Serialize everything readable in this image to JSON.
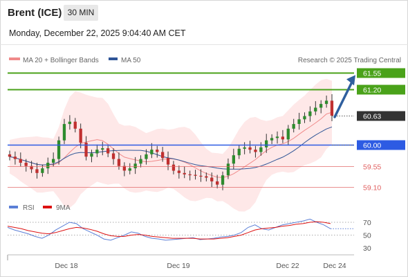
{
  "header": {
    "instrument": "Brent (ICE)",
    "timeframe": "30 MIN",
    "datetime": "Monday, December 22, 2025 9:04:40 AM CET"
  },
  "legend": {
    "ma20_bb": "MA 20 + Bollinger Bands",
    "ma50": "MA 50",
    "credit": "Research © 2025 Trading Central",
    "rsi": "RSI",
    "rsi_ma": "9MA"
  },
  "colors": {
    "ma20": "#f08a8a",
    "ma50": "#2f5597",
    "band": "#fde0e0",
    "target": "#4aa21a",
    "pivot": "#2d5be3",
    "support": "#e06060",
    "current": "#333333",
    "arrow": "#2f5f9e",
    "rsi": "#5b7fd6",
    "rsi_ma": "#dd1111",
    "candle_up": "#2e8b2e",
    "candle_down": "#c03030"
  },
  "chart_data": [
    {
      "type": "candlestick",
      "x_ticks": [
        "Dec 18",
        "Dec 19",
        "Dec 22",
        "Dec 24"
      ],
      "ylim": [
        58.9,
        61.7
      ],
      "levels": [
        {
          "label": "61.55",
          "value": 61.55,
          "kind": "target"
        },
        {
          "label": "61.20",
          "value": 61.2,
          "kind": "target"
        },
        {
          "label": "60.63",
          "value": 60.63,
          "kind": "current"
        },
        {
          "label": "60.00",
          "value": 60.0,
          "kind": "pivot"
        },
        {
          "label": "59.55",
          "value": 59.55,
          "kind": "support"
        },
        {
          "label": "59.10",
          "value": 59.1,
          "kind": "support"
        }
      ],
      "arrow": {
        "from_value": 60.6,
        "to_value": 61.5
      },
      "close_series": [
        59.75,
        59.7,
        59.62,
        59.55,
        59.48,
        59.4,
        59.5,
        59.62,
        59.7,
        60.1,
        60.45,
        60.5,
        60.35,
        60.05,
        59.75,
        59.82,
        59.9,
        59.93,
        59.82,
        59.7,
        59.55,
        59.45,
        59.5,
        59.6,
        59.7,
        59.8,
        59.9,
        59.85,
        59.72,
        59.58,
        59.45,
        59.4,
        59.37,
        59.36,
        59.34,
        59.33,
        59.3,
        59.22,
        59.15,
        59.35,
        59.6,
        59.78,
        59.92,
        59.95,
        59.9,
        59.85,
        59.95,
        60.1,
        60.15,
        60.18,
        60.12,
        60.35,
        60.45,
        60.55,
        60.62,
        60.72,
        60.8,
        60.88,
        60.95,
        60.63
      ]
    },
    {
      "type": "line",
      "title": "RSI",
      "y_ticks": [
        70,
        50,
        30
      ],
      "ylim": [
        20,
        80
      ],
      "series": [
        {
          "name": "RSI",
          "values": [
            62,
            58,
            55,
            52,
            48,
            45,
            50,
            58,
            64,
            70,
            68,
            60,
            55,
            50,
            44,
            42,
            46,
            50,
            55,
            53,
            48,
            45,
            44,
            42,
            43,
            44,
            45,
            46,
            43,
            44,
            45,
            47,
            48,
            50,
            54,
            62,
            66,
            60,
            58,
            62,
            66,
            68,
            70,
            72,
            75,
            70,
            66,
            60
          ]
        },
        {
          "name": "9MA",
          "values": [
            64,
            62,
            60,
            57,
            55,
            53,
            52,
            54,
            57,
            60,
            62,
            61,
            59,
            56,
            52,
            49,
            48,
            48,
            50,
            51,
            50,
            48,
            47,
            46,
            45,
            45,
            45,
            45,
            44,
            44,
            44,
            45,
            46,
            48,
            50,
            54,
            58,
            60,
            61,
            62,
            64,
            65,
            67,
            68,
            70,
            71,
            70,
            68
          ]
        }
      ]
    }
  ]
}
